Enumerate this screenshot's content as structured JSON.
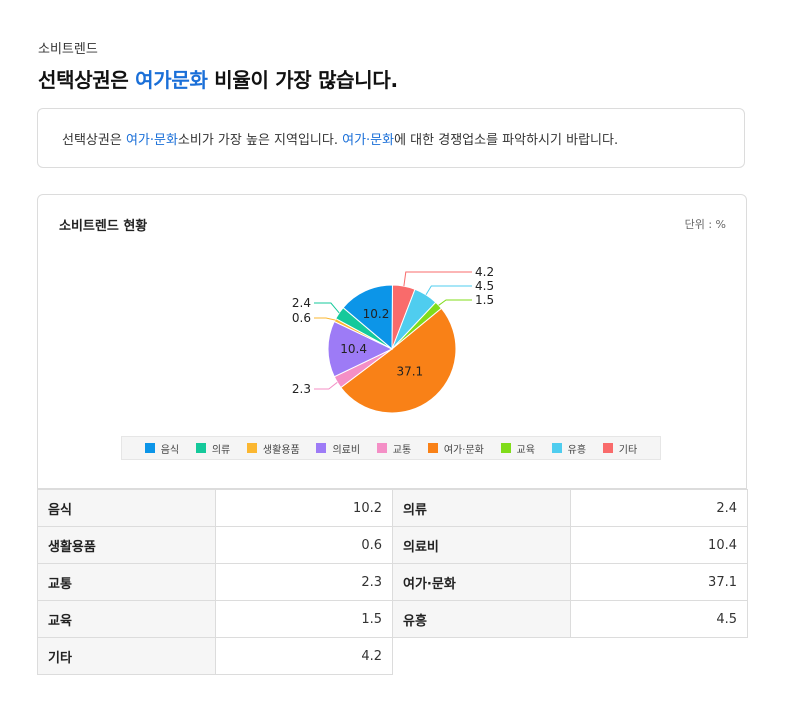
{
  "header": {
    "eyebrow": "소비트렌드",
    "headline_prefix": "선택상권은 ",
    "headline_highlight": "여가문화",
    "headline_suffix": " 비율이 가장 많습니다."
  },
  "summary": {
    "part1": "선택상권은 ",
    "highlight1": "여가·문화",
    "part2": "소비가 가장 높은 지역입니다. ",
    "highlight2": "여가·문화",
    "part3": "에 대한 경쟁업소를 파악하시기 바랍니다."
  },
  "chart_card": {
    "title": "소비트렌드 현황",
    "unit": "단위 : %"
  },
  "chart_data": {
    "type": "pie",
    "title": "소비트렌드 현황",
    "unit": "%",
    "legend_position": "bottom",
    "slices": [
      {
        "label": "음식",
        "value": 10.2,
        "color": "#0c95e8"
      },
      {
        "label": "의류",
        "value": 2.4,
        "color": "#15c99b"
      },
      {
        "label": "생활용품",
        "value": 0.6,
        "color": "#fbb731"
      },
      {
        "label": "의료비",
        "value": 10.4,
        "color": "#9d7bf6"
      },
      {
        "label": "교통",
        "value": 2.3,
        "color": "#f48fc6"
      },
      {
        "label": "여가·문화",
        "value": 37.1,
        "color": "#f98117"
      },
      {
        "label": "교육",
        "value": 1.5,
        "color": "#80dc1a"
      },
      {
        "label": "유흥",
        "value": 4.5,
        "color": "#4fcdef"
      },
      {
        "label": "기타",
        "value": 4.2,
        "color": "#f96b6b"
      }
    ]
  },
  "table": [
    [
      {
        "label": "음식",
        "value": "10.2"
      },
      {
        "label": "의류",
        "value": "2.4"
      }
    ],
    [
      {
        "label": "생활용품",
        "value": "0.6"
      },
      {
        "label": "의료비",
        "value": "10.4"
      }
    ],
    [
      {
        "label": "교통",
        "value": "2.3"
      },
      {
        "label": "여가·문화",
        "value": "37.1"
      }
    ],
    [
      {
        "label": "교육",
        "value": "1.5"
      },
      {
        "label": "유흥",
        "value": "4.5"
      }
    ],
    [
      {
        "label": "기타",
        "value": "4.2"
      }
    ]
  ]
}
